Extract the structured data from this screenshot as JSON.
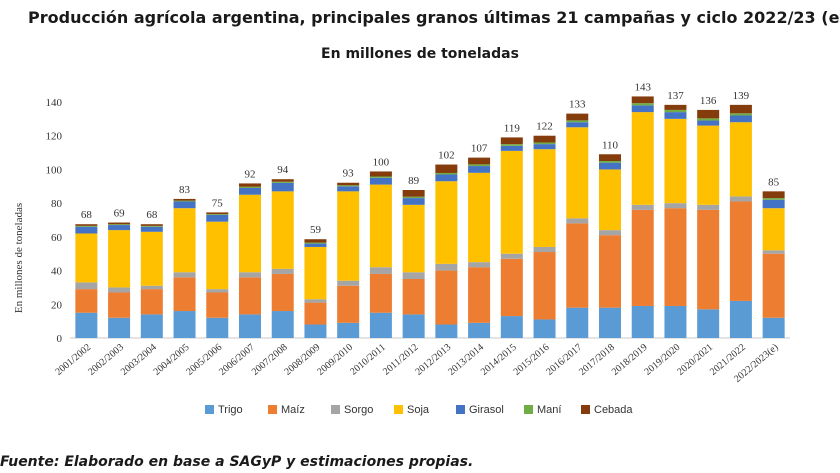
{
  "title": "Producción agrícola argentina, principales granos últimas 21 campañas y ciclo 2022/23 (e",
  "subtitle": "En millones de toneladas",
  "source": "Fuente: Elaborado en base a SAGyP y estimaciones propias.",
  "chart_data": {
    "type": "bar",
    "stacked": true,
    "ylabel": "En millones de toneladas",
    "ylim": [
      0,
      140
    ],
    "yticks": [
      0,
      20,
      40,
      60,
      80,
      100,
      120,
      140
    ],
    "grid": false,
    "legend": "bottom",
    "categories": [
      "2001/2002",
      "2002/2003",
      "2003/2004",
      "2004/2005",
      "2005/2006",
      "2006/2007",
      "2007/2008",
      "2008/2009",
      "2009/2010",
      "2010/2011",
      "2011/2012",
      "2012/2013",
      "2013/2014",
      "2014/2015",
      "2015/2016",
      "2016/2017",
      "2017/2018",
      "2018/2019",
      "2019/2020",
      "2020/2021",
      "2021/2022",
      "2022/2023(e)"
    ],
    "totals": [
      "68",
      "69",
      "68",
      "83",
      "75",
      "92",
      "94",
      "59",
      "93",
      "100",
      "89",
      "102",
      "107",
      "119",
      "122",
      "133",
      "110",
      "143",
      "137",
      "136",
      "139",
      "85"
    ],
    "series": [
      {
        "name": "Trigo",
        "color": "#5b9bd5",
        "values": [
          15,
          12,
          14,
          16,
          12,
          14,
          16,
          8,
          9,
          15,
          14,
          8,
          9,
          13,
          11,
          18,
          18,
          19,
          19,
          17,
          22,
          12
        ]
      },
      {
        "name": "Maíz",
        "color": "#ed7d31",
        "values": [
          14,
          15,
          15,
          20,
          15,
          22,
          22,
          13,
          22,
          23,
          21,
          32,
          33,
          34,
          40,
          50,
          43,
          57,
          58,
          59,
          59,
          38
        ]
      },
      {
        "name": "Sorgo",
        "color": "#a5a5a5",
        "values": [
          4,
          3,
          2,
          3,
          2,
          3,
          3,
          2,
          3,
          4,
          4,
          4,
          3,
          3,
          3,
          3,
          3,
          3,
          3,
          3,
          3,
          2
        ]
      },
      {
        "name": "Soja",
        "color": "#ffc000",
        "values": [
          29,
          34,
          32,
          38,
          40,
          46,
          46,
          31,
          53,
          49,
          40,
          49,
          53,
          61,
          58,
          54,
          36,
          55,
          50,
          47,
          44,
          25
        ]
      },
      {
        "name": "Girasol",
        "color": "#4472c4",
        "values": [
          4,
          3,
          3,
          4,
          4,
          4,
          5,
          2,
          3,
          4,
          4,
          4,
          4,
          3,
          3,
          3,
          4,
          4,
          4,
          3,
          4,
          5
        ]
      },
      {
        "name": "Maní",
        "color": "#70ad47",
        "values": [
          0.5,
          0.5,
          0.5,
          0.5,
          0.5,
          0.7,
          0.7,
          0.6,
          0.6,
          0.8,
          0.8,
          0.9,
          1,
          1,
          1,
          1.1,
          1,
          1.3,
          1.3,
          1.3,
          1.3,
          1
        ]
      },
      {
        "name": "Cebada",
        "color": "#843c0c",
        "values": [
          1,
          1,
          1,
          1,
          1,
          2,
          1.5,
          2,
          1.5,
          3,
          4,
          5,
          4,
          4,
          4,
          4,
          4,
          4,
          3,
          5,
          5,
          4
        ]
      }
    ]
  }
}
